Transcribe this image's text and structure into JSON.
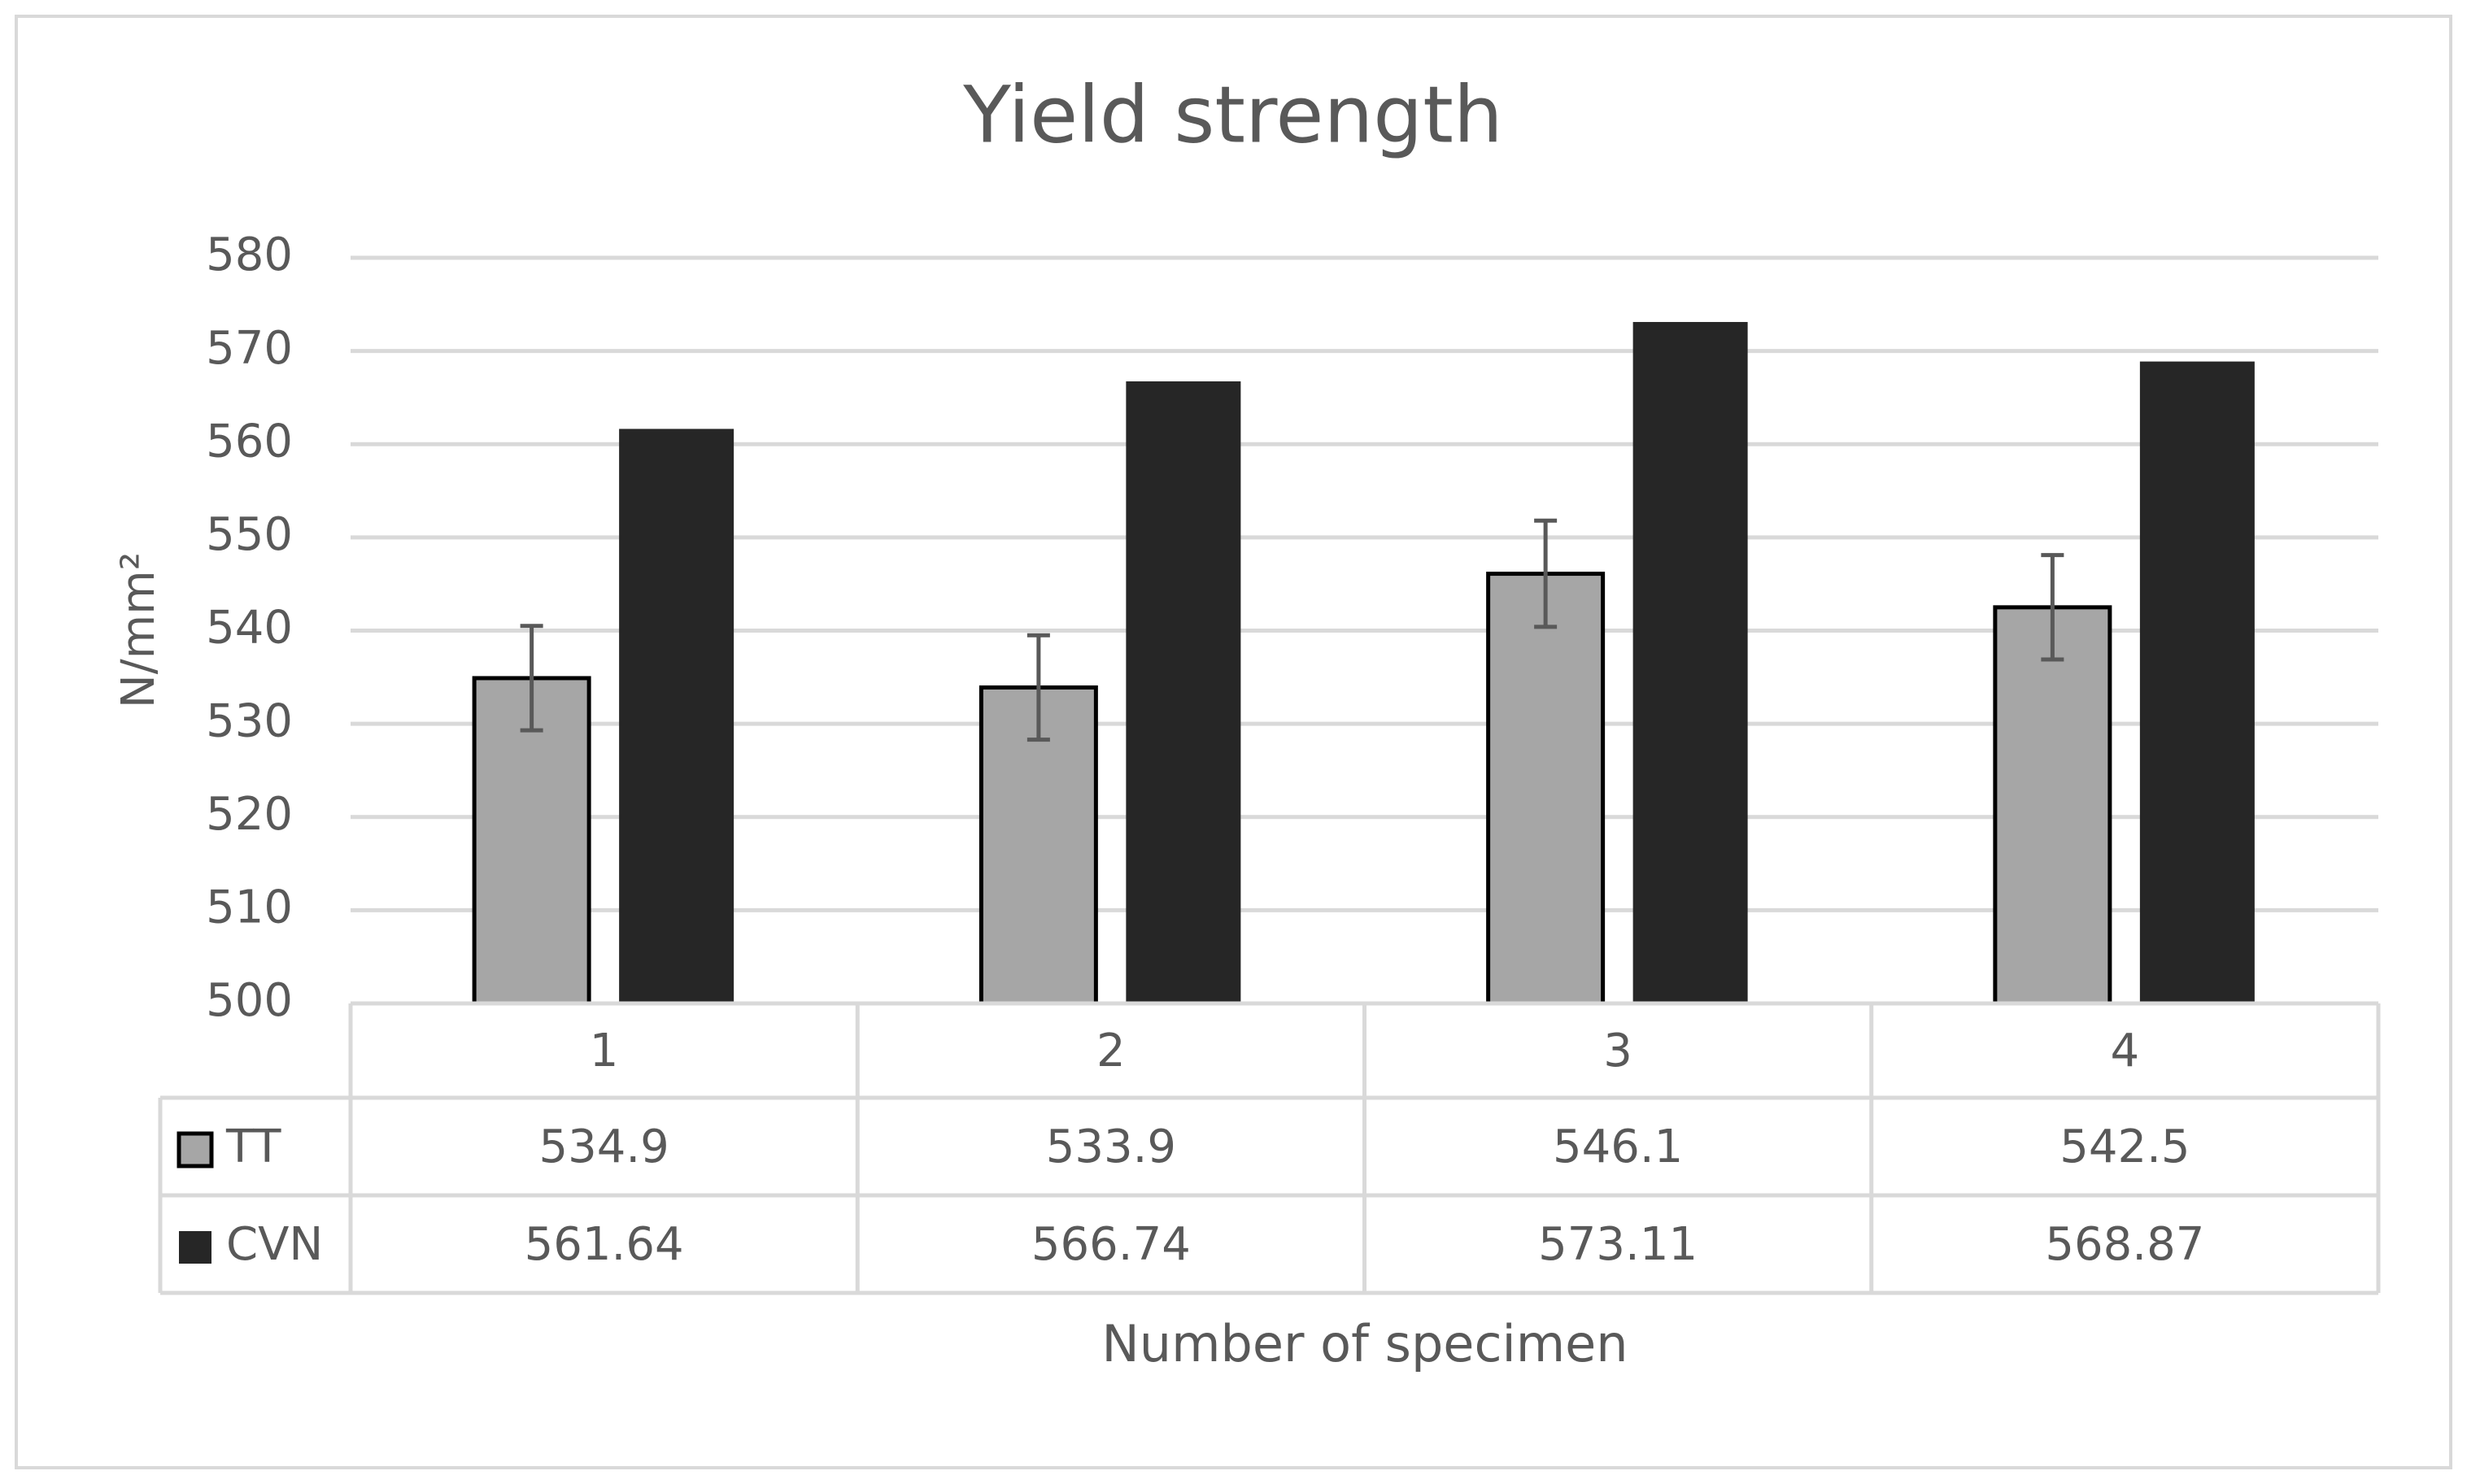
{
  "chart_data": {
    "type": "bar",
    "title": "Yield strength",
    "y_label": "N/mm²",
    "x_label": "Number of specimen",
    "categories": [
      "1",
      "2",
      "3",
      "4"
    ],
    "series": [
      {
        "name": "TT",
        "color": "#a6a6a6",
        "values": [
          534.9,
          533.9,
          546.1,
          542.5
        ],
        "errors": [
          5.6,
          5.6,
          5.7,
          5.6
        ]
      },
      {
        "name": "CVN",
        "color": "#262626",
        "values": [
          561.64,
          566.74,
          573.11,
          568.87
        ]
      }
    ],
    "ylim": [
      500,
      580
    ],
    "yticks": [
      500,
      510,
      520,
      530,
      540,
      550,
      560,
      570,
      580
    ],
    "grid": true,
    "data_table": true
  }
}
